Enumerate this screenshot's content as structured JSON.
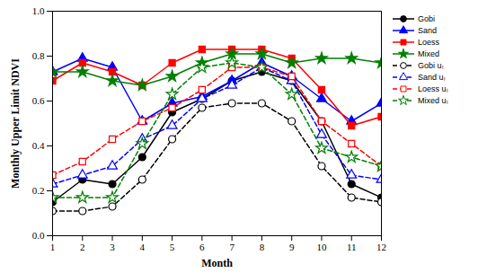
{
  "chart_data": {
    "type": "line",
    "xlabel": "Month",
    "ylabel": "Monthly Upper Limit NDVI",
    "x": [
      1,
      2,
      3,
      4,
      5,
      6,
      7,
      8,
      9,
      10,
      11,
      12
    ],
    "xlim": [
      1,
      12
    ],
    "xticks": [
      1,
      2,
      3,
      4,
      5,
      6,
      7,
      8,
      9,
      10,
      11,
      12
    ],
    "ylim": [
      0,
      1
    ],
    "yticks": [
      {
        "value": 0,
        "label": "0.0"
      },
      0.2,
      0.4,
      0.6,
      0.8,
      {
        "value": 1,
        "label": "1.0"
      }
    ],
    "grid": false,
    "legend": "right",
    "series": [
      {
        "name": "Gobi",
        "color": "#000000",
        "marker": "circle",
        "line_style": "solid",
        "values": [
          0.15,
          0.25,
          0.23,
          0.35,
          0.55,
          0.61,
          0.69,
          0.73,
          0.69,
          0.51,
          0.23,
          0.17
        ]
      },
      {
        "name": "Sand",
        "color": "#0000ff",
        "marker": "triangle",
        "line_style": "solid",
        "values": [
          0.73,
          0.79,
          0.75,
          0.51,
          0.59,
          0.62,
          0.69,
          0.77,
          0.71,
          0.61,
          0.51,
          0.59
        ]
      },
      {
        "name": "Loess",
        "color": "#ff0000",
        "marker": "square",
        "line_style": "solid",
        "values": [
          0.69,
          0.77,
          0.73,
          0.67,
          0.77,
          0.83,
          0.83,
          0.83,
          0.79,
          0.65,
          0.49,
          0.53
        ]
      },
      {
        "name": "Mixed",
        "color": "#008000",
        "marker": "star",
        "line_style": "solid",
        "values": [
          0.73,
          0.73,
          0.69,
          0.67,
          0.71,
          0.77,
          0.81,
          0.81,
          0.77,
          0.79,
          0.79,
          0.77
        ]
      },
      {
        "name": "Gobi uₗ",
        "color": "#000000",
        "marker": "open-circle",
        "line_style": "dashed",
        "values": [
          0.11,
          0.11,
          0.13,
          0.25,
          0.43,
          0.57,
          0.59,
          0.59,
          0.51,
          0.31,
          0.17,
          0.15
        ]
      },
      {
        "name": "Sand uₗ",
        "color": "#0000ff",
        "marker": "open-triangle",
        "line_style": "dashed",
        "values": [
          0.23,
          0.27,
          0.31,
          0.43,
          0.49,
          0.61,
          0.67,
          0.75,
          0.69,
          0.45,
          0.27,
          0.25
        ]
      },
      {
        "name": "Loess uₗ",
        "color": "#ff0000",
        "marker": "open-square",
        "line_style": "dashed",
        "values": [
          0.27,
          0.33,
          0.43,
          0.51,
          0.57,
          0.65,
          0.75,
          0.75,
          0.71,
          0.51,
          0.41,
          0.31
        ]
      },
      {
        "name": "Mixed uₗ",
        "color": "#008000",
        "marker": "open-star",
        "line_style": "dashed",
        "values": [
          0.17,
          0.17,
          0.17,
          0.41,
          0.63,
          0.75,
          0.77,
          0.75,
          0.63,
          0.39,
          0.35,
          0.31
        ]
      }
    ]
  }
}
